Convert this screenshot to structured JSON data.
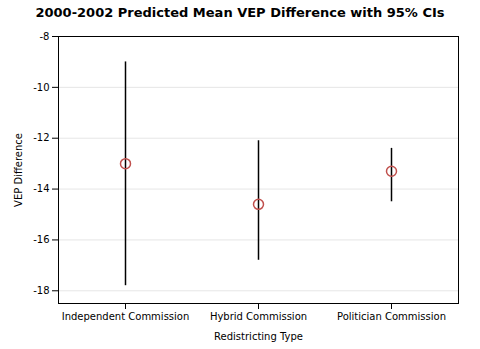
{
  "chart_data": {
    "type": "dot",
    "title": "2000-2002 Predicted Mean VEP Difference with 95% CIs",
    "xlabel": "Redistricting Type",
    "ylabel": "VEP Difference",
    "categories": [
      "Independent Commission",
      "Hybrid Commission",
      "Politician Commission"
    ],
    "values": [
      -13.0,
      -14.6,
      -13.3
    ],
    "ci_lower": [
      -17.8,
      -16.8,
      -14.5
    ],
    "ci_upper": [
      -9.0,
      -12.1,
      -12.4
    ],
    "color": "#c0504d",
    "ylim": [
      -18.5,
      -8.0
    ],
    "yticks": [
      -18,
      -16,
      -14,
      -12,
      -10,
      -8
    ],
    "grid": true
  }
}
